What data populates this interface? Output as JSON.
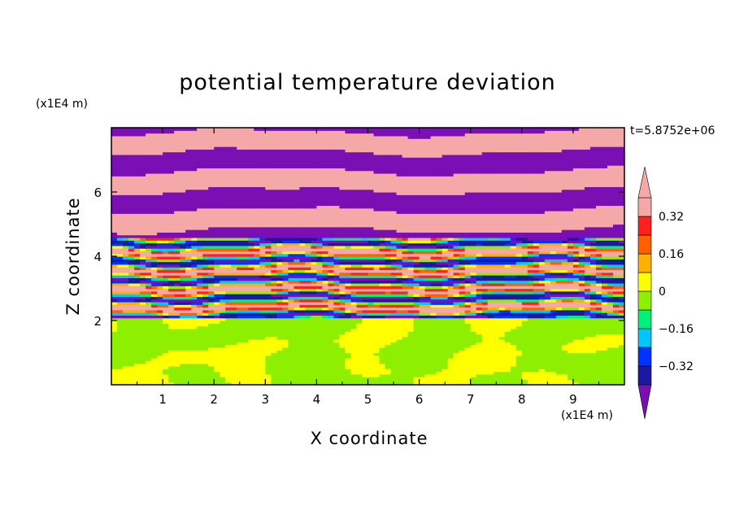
{
  "chart_data": {
    "type": "heatmap",
    "title": "potential temperature deviation",
    "xlabel": "X coordinate",
    "ylabel": "Z coordinate",
    "x_scale_label": "(x1E4 m)",
    "y_scale_label": "(x1E4 m)",
    "time_label": "t=5.8752e+06",
    "xlim": [
      0,
      10
    ],
    "ylim": [
      0,
      8
    ],
    "x_ticks": [
      "1",
      "2",
      "3",
      "4",
      "5",
      "6",
      "7",
      "8",
      "9"
    ],
    "y_ticks": [
      "2",
      "4",
      "6"
    ],
    "colorbar": {
      "levels": [
        -0.4,
        -0.32,
        -0.24,
        -0.16,
        -0.08,
        0,
        0.08,
        0.16,
        0.24,
        0.32,
        0.4
      ],
      "tick_labels": [
        "0.32",
        "0.16",
        "0",
        "−0.16",
        "−0.32"
      ],
      "tick_values": [
        0.32,
        0.16,
        0,
        -0.16,
        -0.32
      ],
      "colors": [
        "#7a0fb4",
        "#1a1aa0",
        "#0033ff",
        "#00c8ff",
        "#00f07a",
        "#8ef000",
        "#ffff00",
        "#ffb000",
        "#ff6000",
        "#ff2020",
        "#f4a8a8"
      ],
      "extend": "both"
    },
    "field_description_layers": [
      {
        "z_range": [
          0,
          2.1
        ],
        "dominant_values": [
          -0.04,
          0.04
        ]
      },
      {
        "z_range": [
          2.1,
          4.6
        ],
        "dominant_values": [
          -0.4,
          -0.2,
          0,
          0.2,
          0.4
        ]
      },
      {
        "z_range": [
          4.6,
          8
        ],
        "dominant_values": [
          -0.4,
          0.4
        ]
      }
    ]
  }
}
